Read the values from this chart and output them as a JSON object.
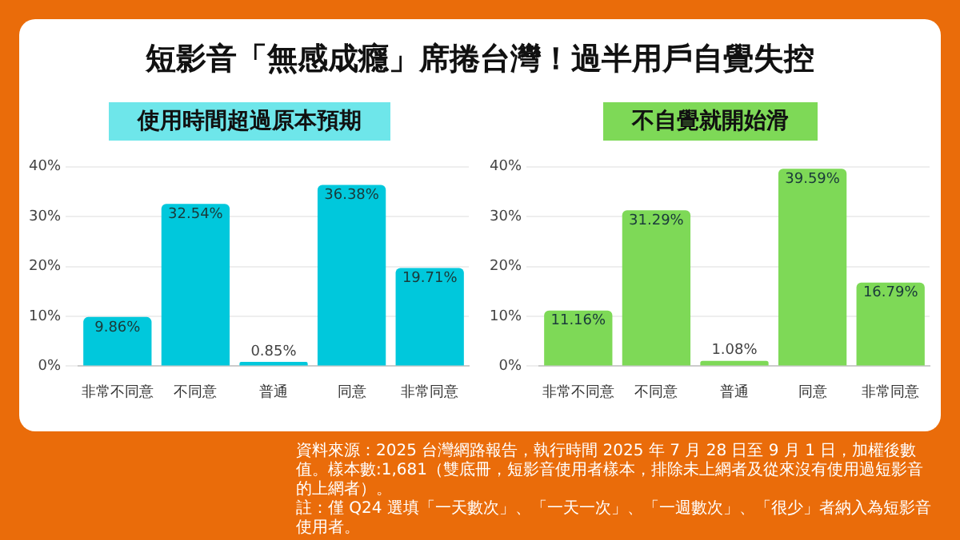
{
  "chart_data": [
    {
      "type": "bar",
      "title": "短影音「無感成癮」席捲台灣！過半用戶自覺失控",
      "subtitle": "使用時間超過原本預期",
      "categories": [
        "非常不同意",
        "不同意",
        "普通",
        "同意",
        "非常同意"
      ],
      "values": [
        9.86,
        32.54,
        0.85,
        36.38,
        19.71
      ],
      "value_labels": [
        "9.86%",
        "32.54%",
        "0.85%",
        "36.38%",
        "19.71%"
      ],
      "color": "#00c8dc",
      "ylim": [
        0,
        40
      ],
      "yticks": [
        {
          "value": 0,
          "label": "0%"
        },
        {
          "value": 10,
          "label": "10%"
        },
        {
          "value": 20,
          "label": "20%"
        },
        {
          "value": 30,
          "label": "30%"
        },
        {
          "value": 40,
          "label": "40%"
        }
      ],
      "grid": "y"
    },
    {
      "type": "bar",
      "title": "不自覺就開始滑",
      "categories": [
        "非常不同意",
        "不同意",
        "普通",
        "同意",
        "非常同意"
      ],
      "values": [
        11.16,
        31.29,
        1.08,
        39.59,
        16.79
      ],
      "value_labels": [
        "11.16%",
        "31.29%",
        "1.08%",
        "39.59%",
        "16.79%"
      ],
      "color": "#7ed957",
      "ylim": [
        0,
        40
      ],
      "yticks": [
        {
          "value": 0,
          "label": "0%"
        },
        {
          "value": 10,
          "label": "10%"
        },
        {
          "value": 20,
          "label": "20%"
        },
        {
          "value": 30,
          "label": "30%"
        },
        {
          "value": 40,
          "label": "40%"
        }
      ],
      "grid": "y",
      "annotations": [
        "資料來源：2025 台灣網路報告，執行時間 2025 年 7 月 28 日至 9 月 1 日，加權後數值。樣本數:1,681（雙底冊，短影音使用者樣本，排除未上網者及從來沒有使用過短影音的上網者）。",
        "註：僅 Q24 選填「一天數次」、「一天一次」、「一週數次」、「很少」者納入為短影音使用者。"
      ]
    }
  ]
}
